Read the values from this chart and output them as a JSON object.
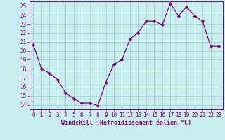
{
  "x": [
    0,
    1,
    2,
    3,
    4,
    5,
    6,
    7,
    8,
    9,
    10,
    11,
    12,
    13,
    14,
    15,
    16,
    17,
    18,
    19,
    20,
    21,
    22,
    23
  ],
  "y": [
    20.7,
    18.0,
    17.5,
    16.8,
    15.3,
    14.7,
    14.2,
    14.2,
    13.9,
    16.5,
    18.5,
    19.0,
    21.3,
    22.0,
    23.3,
    23.3,
    22.9,
    25.3,
    23.9,
    24.9,
    23.9,
    23.3,
    20.5,
    20.5
  ],
  "line_color": "#800080",
  "marker": "D",
  "marker_size": 2.2,
  "bg_color": "#c8eef0",
  "grid_color": "#99ccbb",
  "xlabel": "Windchill (Refroidissement éolien,°C)",
  "xlim": [
    -0.5,
    23.5
  ],
  "ylim": [
    13.5,
    25.5
  ],
  "yticks": [
    14,
    15,
    16,
    17,
    18,
    19,
    20,
    21,
    22,
    23,
    24,
    25
  ],
  "xticks": [
    0,
    1,
    2,
    3,
    4,
    5,
    6,
    7,
    8,
    9,
    10,
    11,
    12,
    13,
    14,
    15,
    16,
    17,
    18,
    19,
    20,
    21,
    22,
    23
  ],
  "tick_color": "#800080",
  "label_color": "#800080",
  "tick_fontsize": 5.5,
  "xlabel_fontsize": 6.0
}
